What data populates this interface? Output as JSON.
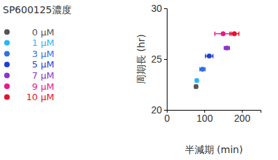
{
  "chart_data": {
    "type": "scatter",
    "legend_title": "SP600125濃度",
    "x_label": "半減期 (min)",
    "y_label": "周期長 (hr)",
    "xlim": [
      0,
      250
    ],
    "ylim": [
      20,
      30
    ],
    "xticks": [
      0,
      100,
      200
    ],
    "yticks": [
      20,
      25,
      30
    ],
    "legend": "left",
    "series": [
      {
        "name": "0 μM",
        "color": "#555555",
        "x": [
          78
        ],
        "values": [
          22.3
        ],
        "x_error": [
          4
        ]
      },
      {
        "name": "1 μM",
        "color": "#29b6f6",
        "x": [
          80
        ],
        "values": [
          22.9
        ],
        "x_error": [
          3
        ]
      },
      {
        "name": "3 μM",
        "color": "#2f6fe8",
        "x": [
          95
        ],
        "values": [
          24.0
        ],
        "x_error": [
          7
        ]
      },
      {
        "name": "5 μM",
        "color": "#1f3fd0",
        "x": [
          113
        ],
        "values": [
          25.3
        ],
        "x_error": [
          10
        ]
      },
      {
        "name": "7 μM",
        "color": "#8b35c9",
        "x": [
          160
        ],
        "values": [
          26.1
        ],
        "x_error": [
          7
        ]
      },
      {
        "name": "9 μM",
        "color": "#e6198c",
        "x": [
          150
        ],
        "values": [
          27.5
        ],
        "x_error": [
          22
        ]
      },
      {
        "name": "10 μM",
        "color": "#e8102c",
        "x": [
          180
        ],
        "values": [
          27.5
        ],
        "x_error": [
          12
        ]
      }
    ]
  }
}
